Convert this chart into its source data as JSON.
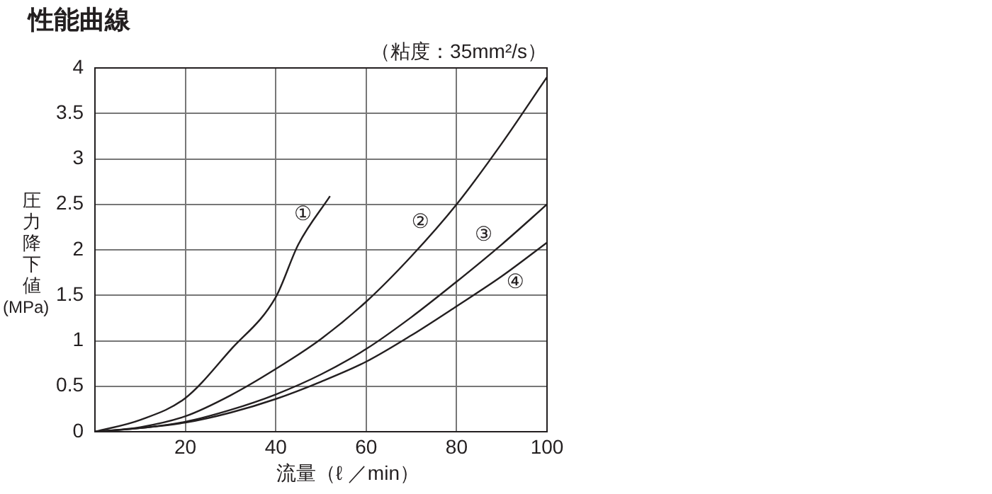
{
  "chart_data": {
    "type": "line",
    "title": "性能曲線",
    "xlabel": "流量（ℓ ／min）",
    "ylabel": "圧力降下値(MPa)",
    "annotations": [
      "（粘度：35mm²/s）"
    ],
    "series": [
      {
        "name": "①",
        "color": "#231f20",
        "x": [
          0,
          10,
          20,
          30,
          40,
          45,
          52
        ],
        "values": [
          0,
          0.13,
          0.37,
          0.9,
          1.48,
          2.06,
          2.59
        ]
      },
      {
        "name": "②",
        "color": "#231f20",
        "x": [
          0,
          10,
          20,
          30,
          40,
          50,
          60,
          70,
          80,
          90,
          100
        ],
        "values": [
          0,
          0.05,
          0.17,
          0.4,
          0.69,
          1.02,
          1.43,
          1.93,
          2.5,
          3.17,
          3.9
        ]
      },
      {
        "name": "③",
        "color": "#231f20",
        "x": [
          0,
          10,
          20,
          30,
          40,
          50,
          60,
          70,
          80,
          90,
          100
        ],
        "values": [
          0,
          0.04,
          0.11,
          0.24,
          0.41,
          0.63,
          0.91,
          1.26,
          1.65,
          2.06,
          2.5
        ]
      },
      {
        "name": "④",
        "color": "#231f20",
        "x": [
          0,
          10,
          20,
          30,
          40,
          50,
          60,
          70,
          80,
          90,
          100
        ],
        "values": [
          0,
          0.04,
          0.1,
          0.21,
          0.36,
          0.55,
          0.77,
          1.06,
          1.38,
          1.71,
          2.08
        ]
      }
    ],
    "xlim": [
      0,
      100
    ],
    "xticks": [
      {
        "value": 0,
        "label": null
      },
      20,
      40,
      60,
      80,
      100
    ],
    "ylim": [
      0,
      4
    ],
    "yticks": [
      0,
      0.5,
      1,
      1.5,
      2,
      2.5,
      3,
      3.5,
      4
    ],
    "grid": true,
    "legend": false,
    "marker": "none",
    "line_style": "solid"
  }
}
